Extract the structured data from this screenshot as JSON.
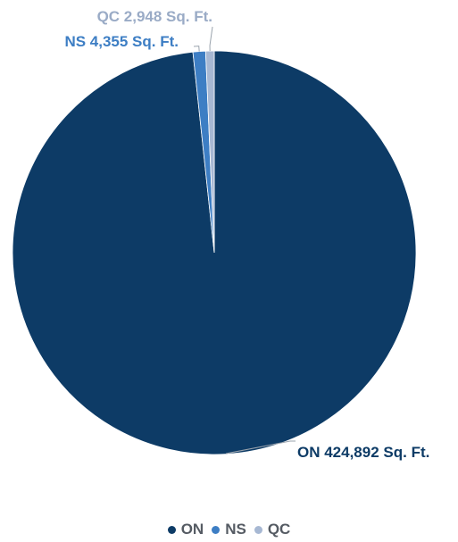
{
  "chart_data": {
    "type": "pie",
    "categories": [
      "ON",
      "NS",
      "QC"
    ],
    "values": [
      424892,
      4355,
      2948
    ],
    "unit": "Sq. Ft.",
    "colors": [
      "#0d3b66",
      "#3d7ec4",
      "#a7b8d3"
    ],
    "data_labels": [
      "ON 424,892 Sq. Ft.",
      "NS 4,355 Sq. Ft.",
      "QC 2,948 Sq. Ft."
    ],
    "legend": [
      "ON",
      "NS",
      "QC"
    ],
    "legend_position": "bottom",
    "title": ""
  }
}
